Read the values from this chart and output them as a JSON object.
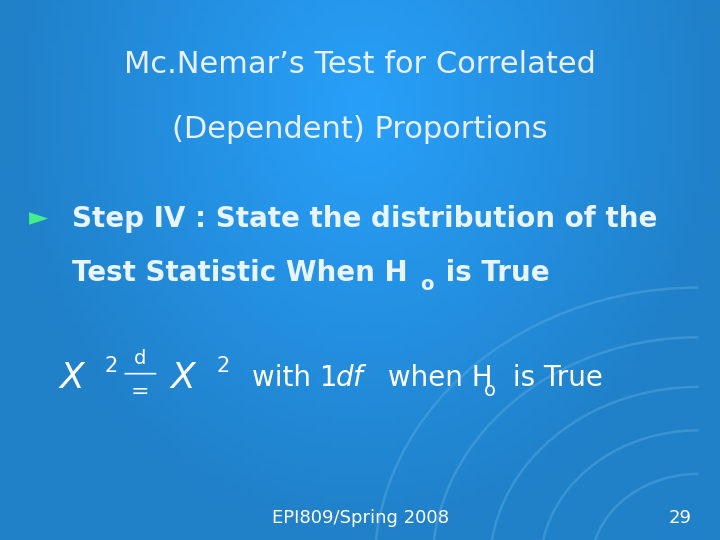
{
  "bg_color": "#2080c8",
  "title_line1": "Mc.Nemar’s Test for Correlated",
  "title_line2": "(Dependent) Proportions",
  "title_color": "#e8f0ff",
  "title_fontsize": 22,
  "bullet_color": "#44ee88",
  "step_color": "#e8f4ff",
  "step_fontsize": 20,
  "formula_color": "#ffffff",
  "footer_text": "EPI809/Spring 2008",
  "footer_page": "29",
  "footer_color": "#ffffff",
  "footer_fontsize": 13,
  "circle_color": "#5aacdf",
  "circle_alpha": 0.45
}
